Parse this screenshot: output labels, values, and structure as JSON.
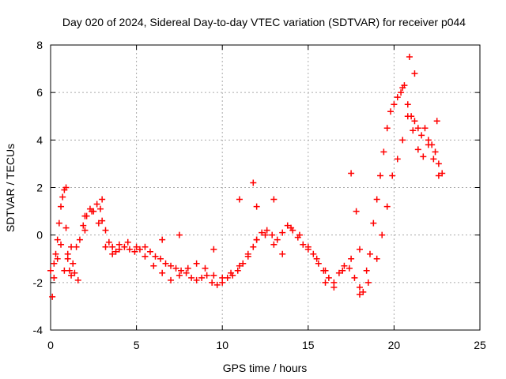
{
  "chart_data": {
    "type": "scatter",
    "title": "Day 020 of 2024, Sidereal Day-to-day VTEC variation (SDTVAR) for receiver p044",
    "xlabel": "GPS time / hours",
    "ylabel": "SDTVAR / TECUs",
    "xlim": [
      0,
      25
    ],
    "ylim": [
      -4,
      8
    ],
    "xticks": [
      0,
      5,
      10,
      15,
      20,
      25
    ],
    "yticks": [
      -4,
      -2,
      0,
      2,
      4,
      6,
      8
    ],
    "grid": true,
    "marker": "+",
    "color": "#ff0000",
    "series": [
      {
        "name": "SDTVAR",
        "x": [
          0.0,
          0.1,
          0.2,
          0.3,
          0.4,
          0.5,
          0.6,
          0.7,
          0.8,
          0.9,
          1.0,
          1.1,
          1.2,
          1.3,
          1.5,
          1.7,
          1.9,
          2.1,
          2.3,
          2.5,
          2.7,
          2.9,
          3.0,
          3.2,
          3.4,
          3.6,
          3.8,
          4.0,
          4.3,
          4.6,
          4.9,
          5.2,
          5.5,
          5.8,
          6.1,
          6.4,
          6.7,
          7.0,
          7.3,
          7.6,
          7.9,
          8.2,
          8.5,
          8.8,
          9.1,
          9.4,
          9.7,
          10.0,
          10.3,
          10.6,
          10.9,
          11.2,
          11.5,
          11.8,
          12.0,
          12.3,
          12.6,
          12.9,
          13.2,
          13.5,
          13.8,
          14.1,
          14.4,
          14.7,
          15.0,
          15.3,
          15.6,
          15.9,
          16.2,
          16.5,
          16.8,
          17.1,
          17.4,
          17.7,
          18.0,
          18.2,
          18.4,
          18.6,
          18.8,
          19.0,
          19.2,
          19.4,
          19.6,
          19.8,
          20.0,
          20.2,
          20.4,
          20.6,
          20.8,
          21.0,
          21.2,
          21.4,
          21.6,
          21.8,
          22.0,
          22.2,
          22.4,
          22.6,
          22.8,
          0.2,
          0.4,
          0.6,
          0.8,
          1.0,
          1.2,
          1.4,
          1.6,
          2.0,
          2.4,
          2.8,
          3.2,
          3.6,
          4.0,
          4.5,
          5.0,
          5.5,
          6.0,
          6.5,
          7.0,
          7.5,
          8.0,
          8.5,
          9.0,
          9.5,
          10.0,
          10.5,
          11.0,
          11.5,
          12.0,
          12.5,
          13.0,
          13.5,
          14.0,
          14.5,
          15.0,
          15.5,
          16.0,
          16.5,
          17.0,
          17.5,
          18.0,
          18.5,
          19.0,
          19.3,
          19.6,
          19.9,
          20.2,
          20.5,
          20.8,
          21.1,
          21.4,
          21.7,
          22.0,
          22.3,
          22.6,
          0.9,
          2.0,
          3.0,
          6.5,
          7.5,
          9.5,
          11.0,
          11.8,
          12.0,
          13.0,
          16.0,
          17.5,
          17.8,
          18.0,
          20.5,
          20.9,
          21.2,
          22.5
        ],
        "y": [
          -1.5,
          -2.6,
          -1.2,
          -0.8,
          -0.2,
          0.5,
          1.2,
          1.6,
          1.9,
          0.3,
          -0.8,
          -1.5,
          -1.7,
          -1.2,
          -0.5,
          -0.2,
          0.4,
          0.8,
          1.1,
          1.0,
          1.3,
          1.1,
          0.6,
          0.2,
          -0.3,
          -0.5,
          -0.7,
          -0.4,
          -0.5,
          -0.6,
          -0.7,
          -0.6,
          -0.5,
          -0.7,
          -0.9,
          -1.0,
          -1.2,
          -1.3,
          -1.4,
          -1.5,
          -1.6,
          -1.8,
          -1.9,
          -1.8,
          -1.7,
          -2.0,
          -2.1,
          -2.0,
          -1.8,
          -1.7,
          -1.5,
          -1.2,
          -0.8,
          -0.5,
          -0.2,
          0.1,
          0.2,
          0.0,
          -0.2,
          0.1,
          0.4,
          0.2,
          -0.1,
          -0.4,
          -0.6,
          -0.8,
          -1.2,
          -1.5,
          -1.8,
          -2.2,
          -1.6,
          -1.3,
          -1.4,
          -1.8,
          -2.2,
          -2.4,
          -1.5,
          -0.8,
          0.5,
          1.5,
          2.5,
          3.5,
          4.5,
          5.2,
          5.5,
          5.8,
          6.0,
          6.3,
          5.5,
          5.0,
          4.8,
          4.5,
          4.2,
          4.5,
          4.0,
          3.8,
          3.5,
          3.0,
          2.6,
          -1.8,
          -1.0,
          -0.4,
          -1.5,
          -1.0,
          -0.5,
          -1.6,
          -1.9,
          0.8,
          1.0,
          0.5,
          -0.5,
          -0.8,
          -0.6,
          -0.3,
          -0.5,
          -0.9,
          -1.3,
          -1.6,
          -1.9,
          -1.7,
          -1.4,
          -1.2,
          -1.4,
          -1.7,
          -1.8,
          -1.6,
          -1.3,
          -0.9,
          -0.2,
          0.0,
          -0.4,
          -0.8,
          0.3,
          0.0,
          -0.5,
          -1.0,
          -1.5,
          -2.0,
          -1.5,
          -1.0,
          -0.6,
          -2.0,
          -1.0,
          0.0,
          1.2,
          2.5,
          3.2,
          4.0,
          5.0,
          4.4,
          3.6,
          3.3,
          3.8,
          3.2,
          2.5,
          2.0,
          0.2,
          1.5,
          -0.2,
          0.0,
          -0.6,
          1.5,
          2.2,
          1.2,
          1.5,
          -2.0,
          2.6,
          1.0,
          -2.5,
          6.2,
          7.5,
          6.8,
          4.8
        ]
      }
    ]
  }
}
